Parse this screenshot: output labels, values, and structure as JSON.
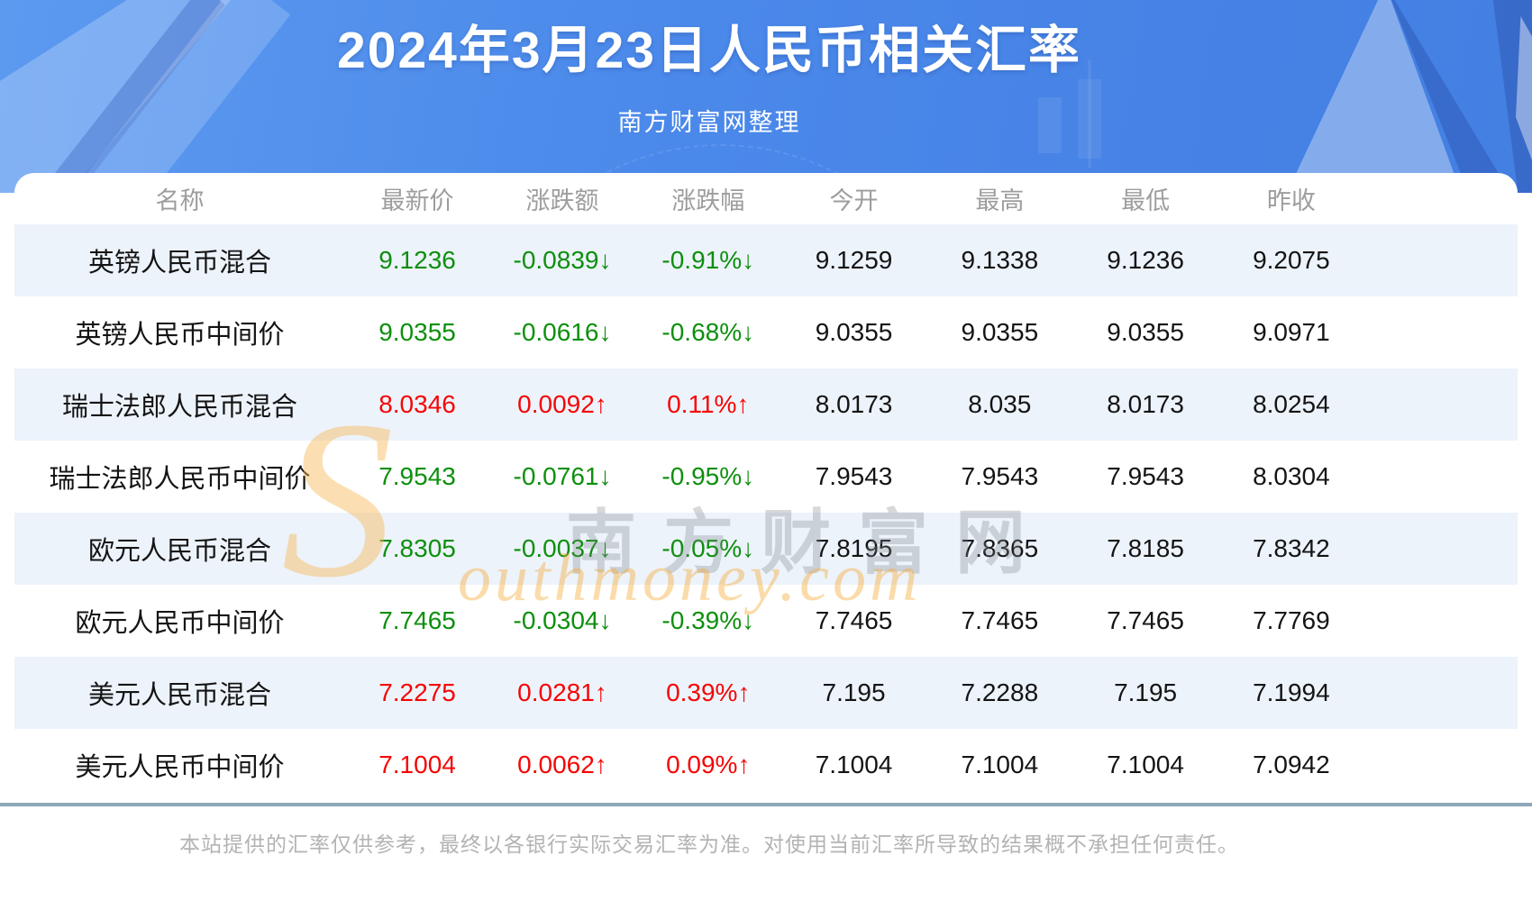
{
  "header": {
    "title": "2024年3月23日人民币相关汇率",
    "subtitle": "南方财富网整理"
  },
  "table": {
    "columns": [
      "名称",
      "最新价",
      "涨跌额",
      "涨跌幅",
      "今开",
      "最高",
      "最低",
      "昨收"
    ],
    "rows": [
      {
        "name": "英镑人民币混合",
        "latest": "9.1236",
        "change": "-0.0839↓",
        "change_pct": "-0.91%↓",
        "open": "9.1259",
        "high": "9.1338",
        "low": "9.1236",
        "prev_close": "9.2075",
        "trend": "down"
      },
      {
        "name": "英镑人民币中间价",
        "latest": "9.0355",
        "change": "-0.0616↓",
        "change_pct": "-0.68%↓",
        "open": "9.0355",
        "high": "9.0355",
        "low": "9.0355",
        "prev_close": "9.0971",
        "trend": "down"
      },
      {
        "name": "瑞士法郎人民币混合",
        "latest": "8.0346",
        "change": "0.0092↑",
        "change_pct": "0.11%↑",
        "open": "8.0173",
        "high": "8.035",
        "low": "8.0173",
        "prev_close": "8.0254",
        "trend": "up"
      },
      {
        "name": "瑞士法郎人民币中间价",
        "latest": "7.9543",
        "change": "-0.0761↓",
        "change_pct": "-0.95%↓",
        "open": "7.9543",
        "high": "7.9543",
        "low": "7.9543",
        "prev_close": "8.0304",
        "trend": "down"
      },
      {
        "name": "欧元人民币混合",
        "latest": "7.8305",
        "change": "-0.0037↓",
        "change_pct": "-0.05%↓",
        "open": "7.8195",
        "high": "7.8365",
        "low": "7.8185",
        "prev_close": "7.8342",
        "trend": "down"
      },
      {
        "name": "欧元人民币中间价",
        "latest": "7.7465",
        "change": "-0.0304↓",
        "change_pct": "-0.39%↓",
        "open": "7.7465",
        "high": "7.7465",
        "low": "7.7465",
        "prev_close": "7.7769",
        "trend": "down"
      },
      {
        "name": "美元人民币混合",
        "latest": "7.2275",
        "change": "0.0281↑",
        "change_pct": "0.39%↑",
        "open": "7.195",
        "high": "7.2288",
        "low": "7.195",
        "prev_close": "7.1994",
        "trend": "up"
      },
      {
        "name": "美元人民币中间价",
        "latest": "7.1004",
        "change": "0.0062↑",
        "change_pct": "0.09%↑",
        "open": "7.1004",
        "high": "7.1004",
        "low": "7.1004",
        "prev_close": "7.0942",
        "trend": "up"
      }
    ]
  },
  "watermark": {
    "initial": "S",
    "cn": "南方财富网",
    "en": "outhmoney.com"
  },
  "footer": {
    "disclaimer": "本站提供的汇率仅供参考，最终以各银行实际交易汇率为准。对使用当前汇率所导致的结果概不承担任何责任。"
  },
  "colors": {
    "up_red": "#f50505",
    "down_green": "#0d8f0d",
    "banner_blue": "#4a88ea",
    "row_stripe": "#edf3fb"
  }
}
